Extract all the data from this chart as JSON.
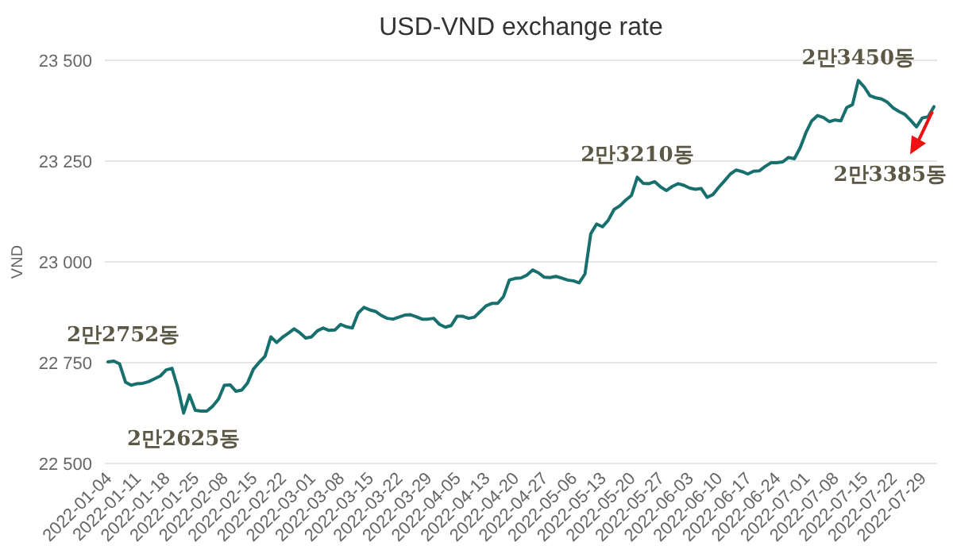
{
  "chart_data": {
    "type": "line",
    "title": "USD-VND exchange rate",
    "ylabel": "VND",
    "categories": [
      "2022-01-04",
      null,
      null,
      null,
      null,
      "2022-01-11",
      null,
      null,
      null,
      null,
      "2022-01-18",
      null,
      null,
      null,
      null,
      "2022-01-25",
      null,
      null,
      null,
      null,
      "2022-02-08",
      null,
      null,
      null,
      null,
      "2022-02-15",
      null,
      null,
      null,
      null,
      "2022-02-22",
      null,
      null,
      null,
      null,
      "2022-03-01",
      null,
      null,
      null,
      null,
      "2022-03-08",
      null,
      null,
      null,
      null,
      "2022-03-15",
      null,
      null,
      null,
      null,
      "2022-03-22",
      null,
      null,
      null,
      null,
      "2022-03-29",
      null,
      null,
      null,
      null,
      "2022-04-05",
      null,
      null,
      null,
      null,
      "2022-04-13",
      null,
      null,
      null,
      null,
      "2022-04-20",
      null,
      null,
      null,
      null,
      "2022-04-27",
      null,
      null,
      null,
      null,
      "2022-05-06",
      null,
      null,
      null,
      null,
      "2022-05-13",
      null,
      null,
      null,
      null,
      "2022-05-20",
      null,
      null,
      null,
      null,
      "2022-05-27",
      null,
      null,
      null,
      null,
      "2022-06-03",
      null,
      null,
      null,
      null,
      "2022-06-10",
      null,
      null,
      null,
      null,
      "2022-06-17",
      null,
      null,
      null,
      null,
      "2022-06-24",
      null,
      null,
      null,
      null,
      "2022-07-01",
      null,
      null,
      null,
      null,
      "2022-07-08",
      null,
      null,
      null,
      null,
      "2022-07-15",
      null,
      null,
      null,
      null,
      "2022-07-22",
      null,
      null,
      null,
      null,
      "2022-07-29",
      null,
      null
    ],
    "series": [
      {
        "color": "#17706e",
        "values": [
          22752,
          22754,
          22747,
          22702,
          22694,
          22698,
          22699,
          22703,
          22710,
          22717,
          22732,
          22736,
          22688,
          22625,
          22670,
          22632,
          22630,
          22630,
          22642,
          22660,
          22694,
          22695,
          22679,
          22682,
          22700,
          22734,
          22751,
          22766,
          22814,
          22800,
          22813,
          22823,
          22834,
          22824,
          22811,
          22814,
          22829,
          22836,
          22830,
          22831,
          22845,
          22839,
          22836,
          22873,
          22887,
          22881,
          22877,
          22867,
          22860,
          22858,
          22863,
          22868,
          22869,
          22864,
          22858,
          22858,
          22860,
          22845,
          22838,
          22842,
          22865,
          22865,
          22860,
          22863,
          22877,
          22891,
          22897,
          22897,
          22914,
          22955,
          22959,
          22960,
          22967,
          22980,
          22973,
          22962,
          22961,
          22964,
          22960,
          22955,
          22953,
          22948,
          22970,
          23070,
          23094,
          23087,
          23103,
          23130,
          23139,
          23153,
          23165,
          23210,
          23195,
          23194,
          23199,
          23186,
          23177,
          23187,
          23194,
          23190,
          23183,
          23180,
          23182,
          23160,
          23167,
          23185,
          23201,
          23218,
          23228,
          23224,
          23218,
          23225,
          23226,
          23237,
          23246,
          23246,
          23248,
          23259,
          23256,
          23283,
          23321,
          23350,
          23363,
          23358,
          23348,
          23352,
          23350,
          23383,
          23390,
          23450,
          23434,
          23412,
          23407,
          23404,
          23396,
          23382,
          23373,
          23366,
          23351,
          23335,
          23357,
          23360,
          23385
        ]
      }
    ],
    "ylim": [
      22500,
      23500
    ],
    "yticks": [
      {
        "value": 22500,
        "label": "22 500"
      },
      {
        "value": 22750,
        "label": "22 750"
      },
      {
        "value": 23000,
        "label": "23 000"
      },
      {
        "value": 23250,
        "label": "23 250"
      },
      {
        "value": 23500,
        "label": "23 500"
      }
    ],
    "grid": "y",
    "annotations": [
      {
        "text": "2만2752동",
        "x": "2022-01-04",
        "y": 22752
      },
      {
        "text": "2만2625동",
        "y": 22625
      },
      {
        "text": "2만3210동",
        "y": 23210
      },
      {
        "text": "2만3450동",
        "y": 23450
      },
      {
        "text": "2만3385동",
        "y": 23385
      }
    ]
  }
}
